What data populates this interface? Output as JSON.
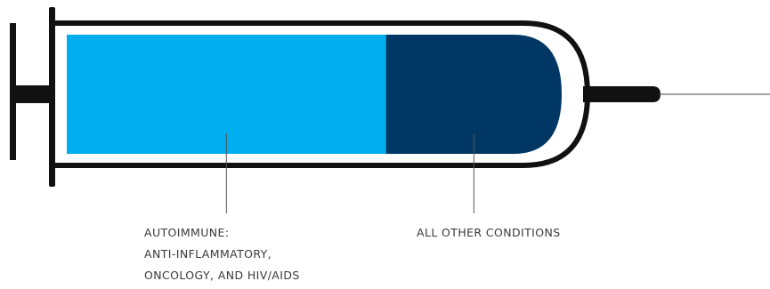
{
  "chart_data": {
    "type": "bar",
    "orientation": "horizontal-stacked",
    "segments": [
      {
        "label_lines": [
          "AUTOIMMUNE:",
          "ANTI-INFLAMMATORY,",
          "ONCOLOGY, AND HIV/AIDS"
        ],
        "value": 0.645,
        "color": "#00aeef"
      },
      {
        "label_lines": [
          "ALL OTHER CONDITIONS"
        ],
        "value": 0.355,
        "color": "#003764"
      }
    ],
    "colors": {
      "outline": "#111111",
      "leader": "#555555"
    }
  }
}
